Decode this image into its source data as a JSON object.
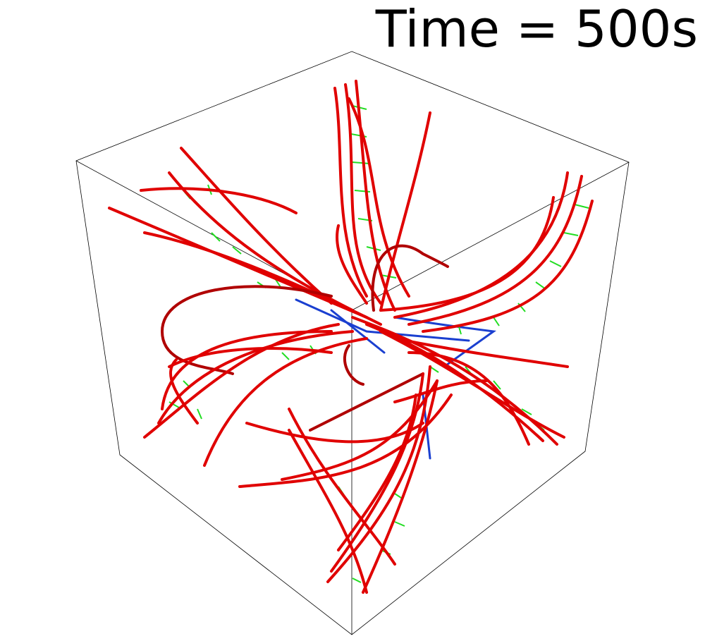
{
  "label": "Time = 500s"
}
